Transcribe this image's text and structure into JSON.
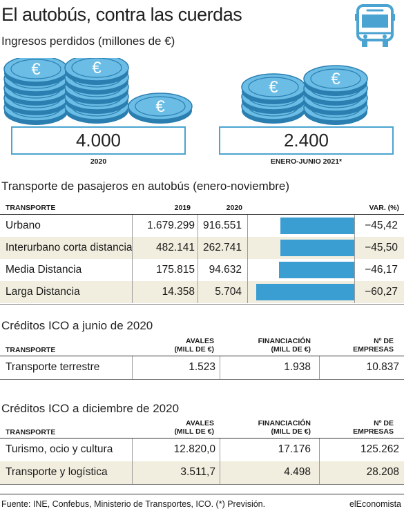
{
  "header": {
    "title": "El autobús, contra las cuerdas",
    "subtitle": "Ingresos perdidos (millones de €)"
  },
  "lost_revenue": [
    {
      "value": "4.000",
      "label": "2020"
    },
    {
      "value": "2.400",
      "label": "ENERO-JUNIO 2021*"
    }
  ],
  "coin_symbol": "€",
  "colors": {
    "accent": "#4aa3d1",
    "bar": "#3a9ed3",
    "shade": "#f2eedf"
  },
  "passengers": {
    "title": "Transporte de pasajeros en autobús (enero-noviembre)",
    "headers": {
      "type": "TRANSPORTE",
      "y2019": "2019",
      "y2020": "2020",
      "var": "VAR. (%)"
    },
    "rows": [
      {
        "type": "Urbano",
        "y2019": "1.679.299",
        "y2020": "916.551",
        "var": "−45,42"
      },
      {
        "type": "Interurbano corta distancia",
        "y2019": "482.141",
        "y2020": "262.741",
        "var": "−45,50"
      },
      {
        "type": "Media Distancia",
        "y2019": "175.815",
        "y2020": "94.632",
        "var": "−46,17"
      },
      {
        "type": "Larga Distancia",
        "y2019": "14.358",
        "y2020": "5.704",
        "var": "−60,27"
      }
    ]
  },
  "chart_data": {
    "type": "bar",
    "title": "Transporte de pasajeros en autobús (enero-noviembre)",
    "categories": [
      "Urbano",
      "Interurbano corta distancia",
      "Media Distancia",
      "Larga Distancia"
    ],
    "series": [
      {
        "name": "2019",
        "values": [
          1679299,
          482141,
          175815,
          14358
        ]
      },
      {
        "name": "2020",
        "values": [
          916551,
          262741,
          94632,
          5704
        ]
      },
      {
        "name": "VAR. (%)",
        "values": [
          -45.42,
          -45.5,
          -46.17,
          -60.27
        ]
      }
    ],
    "ylim": [
      -62,
      0
    ]
  },
  "ico_june": {
    "title": "Créditos ICO a junio de 2020",
    "headers": {
      "type": "TRANSPORTE",
      "avales": [
        "AVALES",
        "(MILL DE €)"
      ],
      "financ": [
        "FINANCIACIÓN",
        "(MILL DE €)"
      ],
      "empresas": [
        "Nº DE",
        "EMPRESAS"
      ]
    },
    "rows": [
      {
        "type": "Transporte terrestre",
        "avales": "1.523",
        "financ": "1.938",
        "empresas": "10.837"
      }
    ]
  },
  "ico_dec": {
    "title": "Créditos ICO a diciembre de 2020",
    "headers": {
      "type": "TRANSPORTE",
      "avales": [
        "AVALES",
        "(MILL DE €)"
      ],
      "financ": [
        "FINANCIACIÓN",
        "(MILL DE €)"
      ],
      "empresas": [
        "Nº DE",
        "EMPRESAS"
      ]
    },
    "rows": [
      {
        "type": "Turismo, ocio y cultura",
        "avales": "12.820,0",
        "financ": "17.176",
        "empresas": "125.262"
      },
      {
        "type": "Transporte y logística",
        "avales": "3.511,7",
        "financ": "4.498",
        "empresas": "28.208"
      }
    ]
  },
  "footer": {
    "source": "Fuente: INE, Confebus, Ministerio de Transportes, ICO. (*) Previsión.",
    "brand": "elEconomista"
  }
}
